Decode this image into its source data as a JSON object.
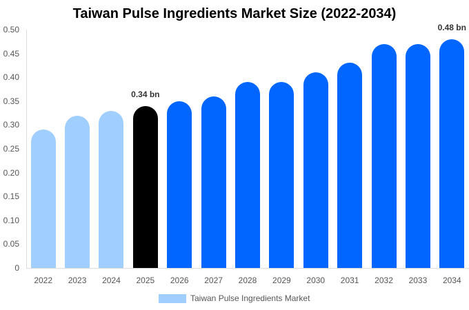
{
  "title": "Taiwan Pulse Ingredients Market Size (2022-2034)",
  "legend": {
    "label": "Taiwan Pulse Ingredients Market",
    "color": "#a0cfff"
  },
  "y_ticks": [
    "0",
    "0.05",
    "0.10",
    "0.15",
    "0.20",
    "0.25",
    "0.30",
    "0.35",
    "0.40",
    "0.45",
    "0.50"
  ],
  "annotations": {
    "2025": "0.34 bn",
    "2034": "0.48 bn"
  },
  "colors": {
    "historic": "#a0cfff",
    "current": "#000000",
    "forecast": "#0066ff"
  },
  "chart_data": {
    "type": "bar",
    "title": "Taiwan Pulse Ingredients Market Size (2022-2034)",
    "xlabel": "",
    "ylabel": "",
    "ylim": [
      0,
      0.5
    ],
    "grid": false,
    "legend_position": "bottom",
    "categories": [
      "2022",
      "2023",
      "2024",
      "2025",
      "2026",
      "2027",
      "2028",
      "2029",
      "2030",
      "2031",
      "2032",
      "2033",
      "2034"
    ],
    "series": [
      {
        "name": "Taiwan Pulse Ingredients Market",
        "values": [
          0.29,
          0.32,
          0.33,
          0.34,
          0.35,
          0.36,
          0.39,
          0.39,
          0.41,
          0.43,
          0.47,
          0.47,
          0.48
        ]
      }
    ],
    "bar_colors": [
      "#a0cfff",
      "#a0cfff",
      "#a0cfff",
      "#000000",
      "#0066ff",
      "#0066ff",
      "#0066ff",
      "#0066ff",
      "#0066ff",
      "#0066ff",
      "#0066ff",
      "#0066ff",
      "#0066ff"
    ],
    "data_labels": [
      {
        "category": "2025",
        "text": "0.34 bn"
      },
      {
        "category": "2034",
        "text": "0.48 bn"
      }
    ],
    "yticks": [
      0,
      0.05,
      0.1,
      0.15,
      0.2,
      0.25,
      0.3,
      0.35,
      0.4,
      0.45,
      0.5
    ]
  }
}
